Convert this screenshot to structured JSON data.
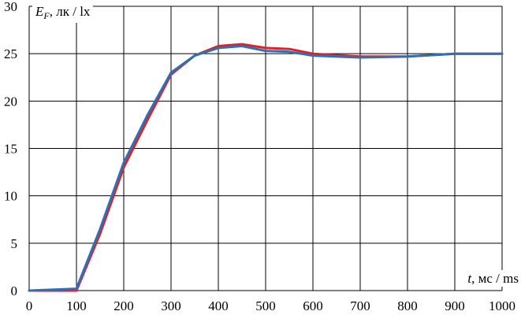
{
  "chart_data": {
    "type": "line",
    "title": "",
    "ylabel": {
      "var": "E",
      "sub": "F",
      "units": ", лк / lx"
    },
    "xlabel": {
      "var": "t",
      "units": ", мс / ms"
    },
    "xlim": [
      0,
      1000
    ],
    "ylim": [
      0,
      30
    ],
    "x_ticks": [
      0,
      100,
      200,
      300,
      400,
      500,
      600,
      700,
      800,
      900,
      1000
    ],
    "y_ticks": [
      0,
      5,
      10,
      15,
      20,
      25,
      30
    ],
    "grid": true,
    "legend": "none",
    "series": [
      {
        "color": "#e0202a",
        "x": [
          0,
          100,
          150,
          200,
          250,
          300,
          350,
          400,
          450,
          500,
          550,
          600,
          700,
          800,
          900,
          1000
        ],
        "y": [
          0,
          0,
          6,
          13,
          18,
          22.8,
          24.8,
          25.8,
          26,
          25.6,
          25.5,
          25,
          24.7,
          24.7,
          25,
          25
        ]
      },
      {
        "color": "#2a72b5",
        "x": [
          0,
          100,
          150,
          200,
          250,
          300,
          350,
          400,
          450,
          500,
          550,
          600,
          700,
          800,
          900,
          1000
        ],
        "y": [
          0,
          0.2,
          6.5,
          13.5,
          18.5,
          23,
          24.8,
          25.6,
          25.8,
          25.3,
          25.2,
          24.8,
          24.6,
          24.7,
          25,
          25
        ]
      }
    ]
  }
}
